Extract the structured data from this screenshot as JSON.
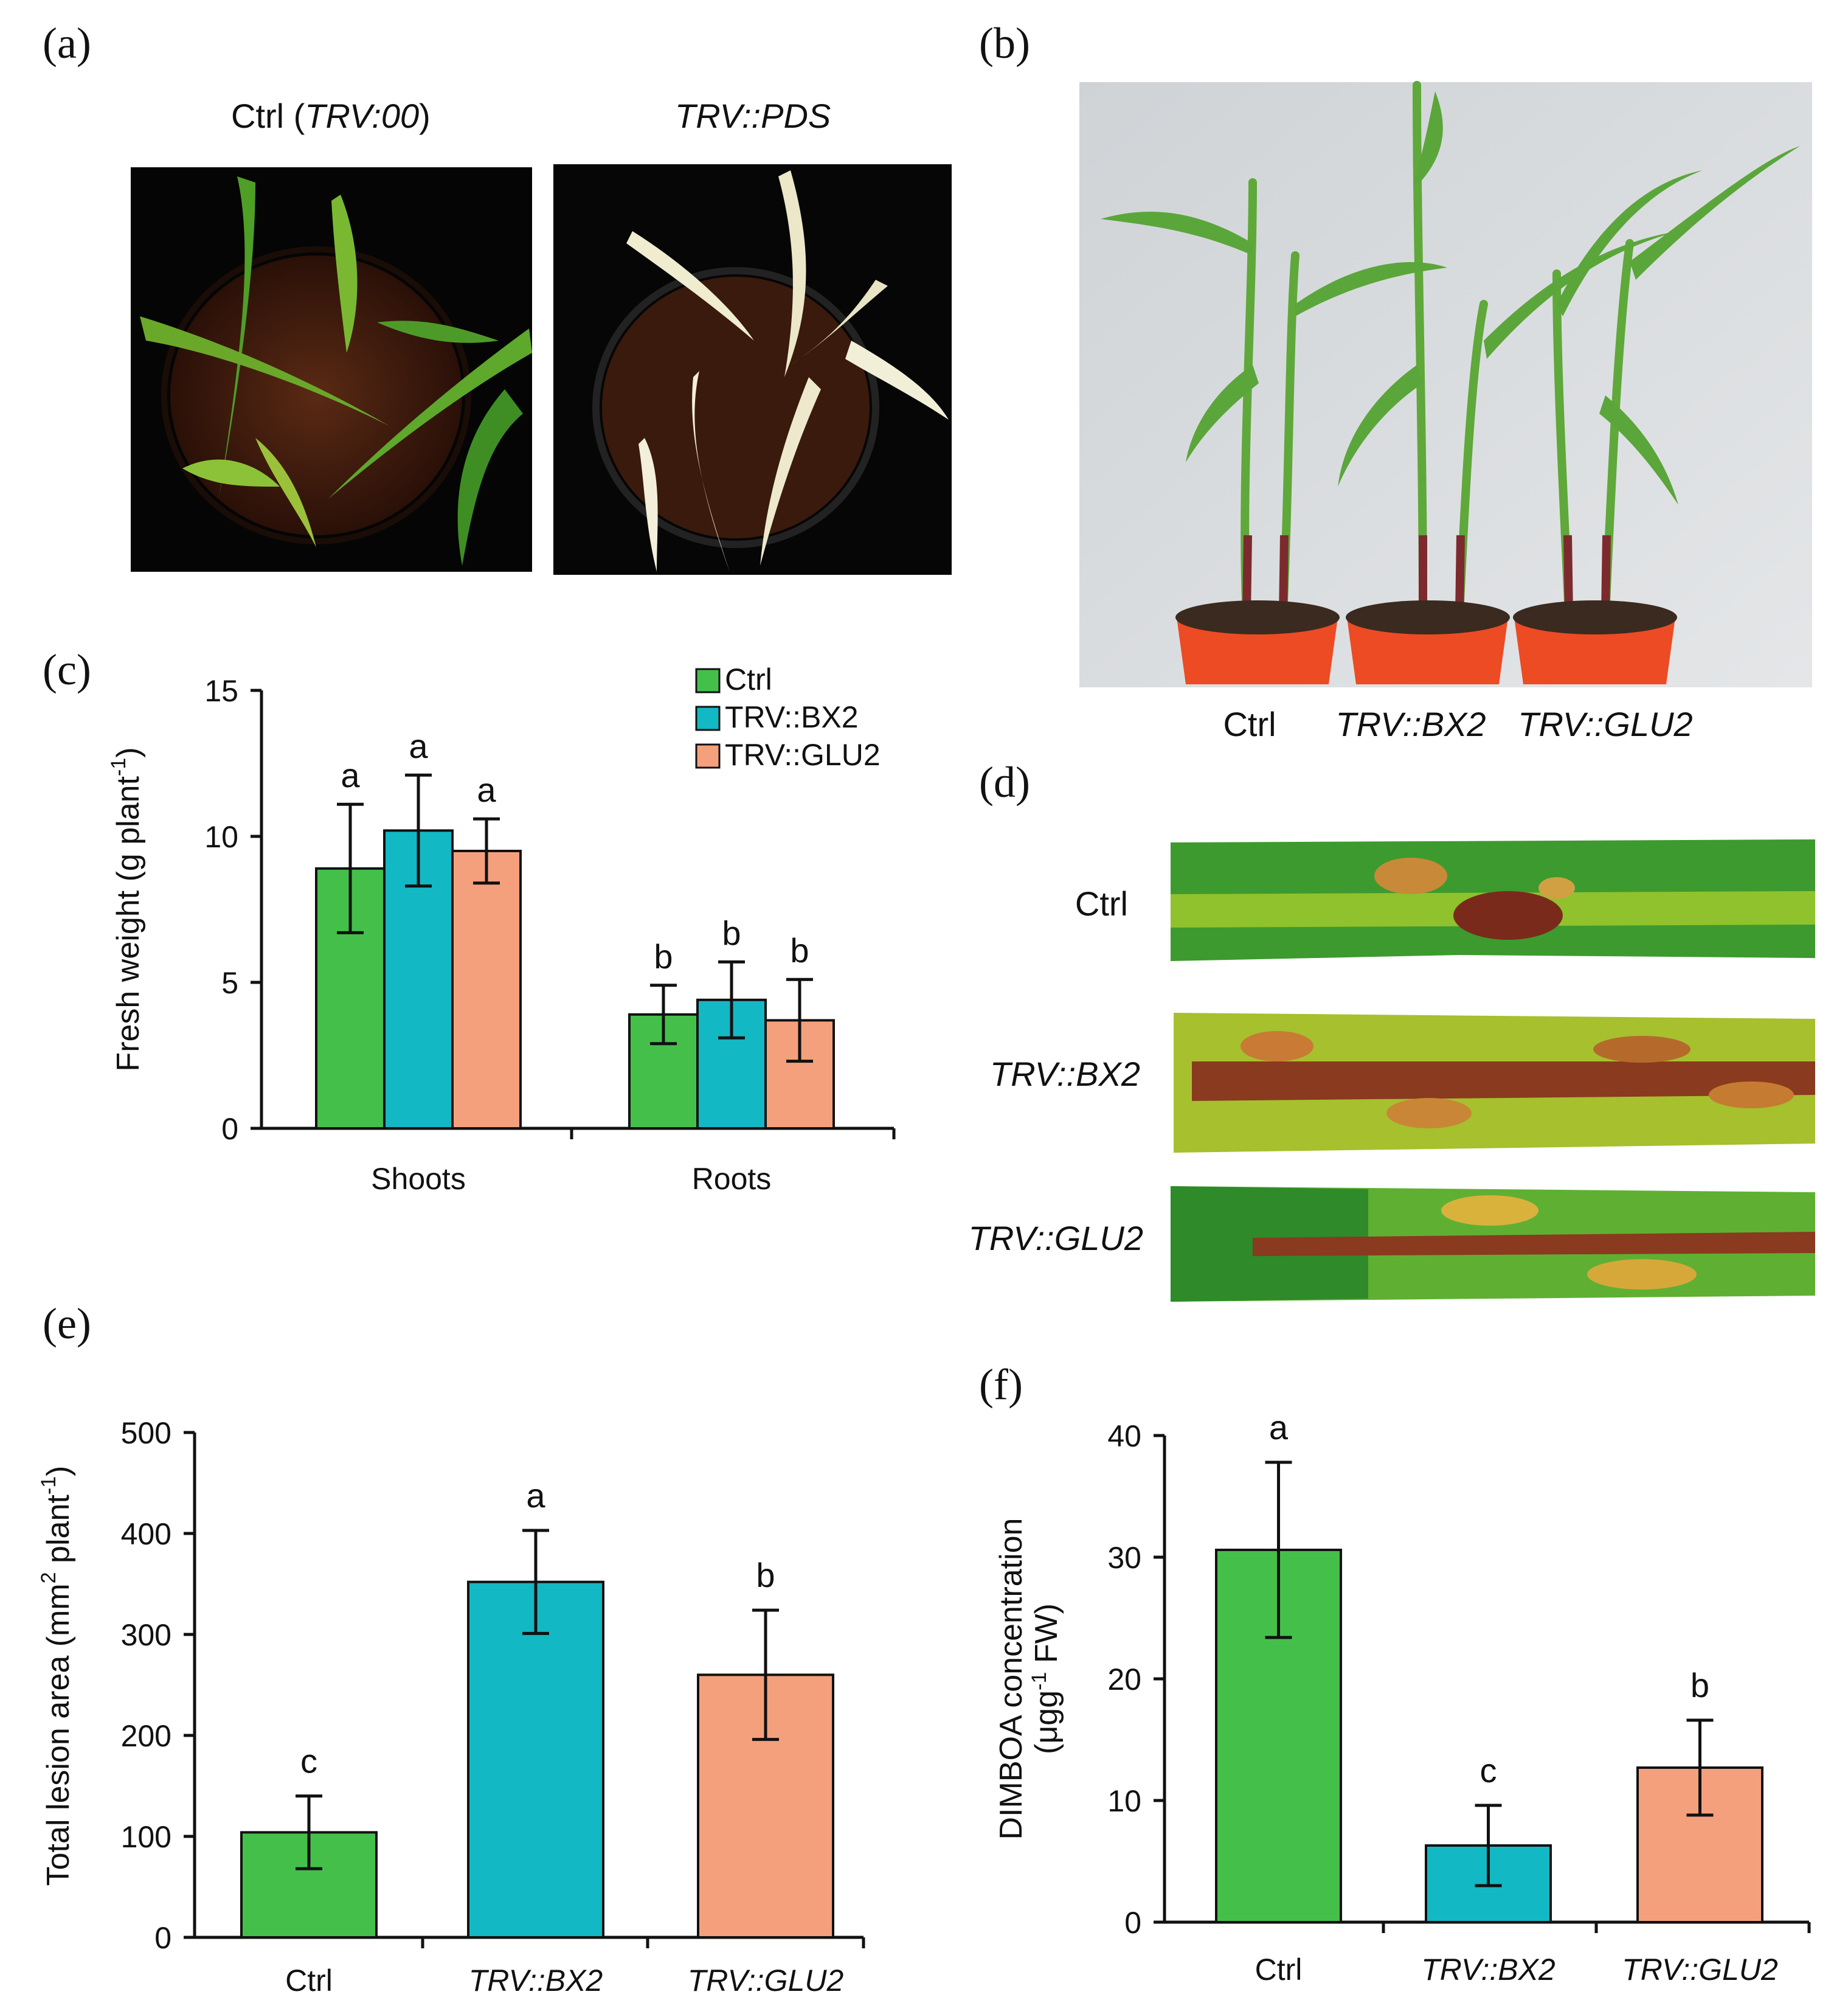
{
  "colors": {
    "ctrl": "#44c04a",
    "bx2": "#12b8c4",
    "glu2": "#f5a07c"
  },
  "panels": {
    "a": {
      "label": "(a)",
      "left_title_prefix": "Ctrl (",
      "left_title_italic": "TRV:00",
      "left_title_suffix": ")",
      "right_title": "TRV::PDS"
    },
    "b": {
      "label": "(b)",
      "captions": [
        "Ctrl",
        "TRV::BX2",
        "TRV::GLU2"
      ]
    },
    "d": {
      "label": "(d)",
      "rows": [
        "Ctrl",
        "TRV::BX2",
        "TRV::GLU2"
      ]
    }
  },
  "chart_data": [
    {
      "panel": "(c)",
      "type": "bar",
      "categories": [
        "Shoots",
        "Roots"
      ],
      "ylabel_main": "Fresh weight (g plant",
      "ylabel_sup": "-1",
      "ylabel_end": ")",
      "ylim": [
        0,
        15
      ],
      "yticks": [
        "0",
        "5",
        "10",
        "15"
      ],
      "legend": [
        "Ctrl",
        "TRV::BX2",
        "TRV::GLU2"
      ],
      "legend_position": "top-right",
      "series": [
        {
          "name": "Ctrl",
          "values": [
            8.9,
            3.9
          ],
          "errors": [
            2.2,
            1.0
          ],
          "letters": [
            "a",
            "b"
          ]
        },
        {
          "name": "TRV::BX2",
          "values": [
            10.2,
            4.4
          ],
          "errors": [
            1.9,
            1.3
          ],
          "letters": [
            "a",
            "b"
          ]
        },
        {
          "name": "TRV::GLU2",
          "values": [
            9.5,
            3.7
          ],
          "errors": [
            1.1,
            1.4
          ],
          "letters": [
            "a",
            "b"
          ]
        }
      ]
    },
    {
      "panel": "(e)",
      "type": "bar",
      "categories": [
        "Ctrl",
        "TRV::BX2",
        "TRV::GLU2"
      ],
      "ylabel_main": "Total lesion area (mm",
      "ylabel_sup1": "2",
      "ylabel_mid": " plant",
      "ylabel_sup2": "-1",
      "ylabel_end": ")",
      "ylim": [
        0,
        500
      ],
      "yticks": [
        "0",
        "100",
        "200",
        "300",
        "400",
        "500"
      ],
      "values": [
        104,
        352,
        260
      ],
      "errors": [
        36,
        51,
        64
      ],
      "letters": [
        "c",
        "a",
        "b"
      ]
    },
    {
      "panel": "(f)",
      "type": "bar",
      "categories": [
        "Ctrl",
        "TRV::BX2",
        "TRV::GLU2"
      ],
      "ylabel_line1": "DIMBOA concentration",
      "ylabel_line2_a": "(μgg",
      "ylabel_line2_sup": "-1",
      "ylabel_line2_b": " FW)",
      "ylim": [
        0,
        40
      ],
      "yticks": [
        "0",
        "10",
        "20",
        "30",
        "40"
      ],
      "values": [
        30.6,
        6.3,
        12.7
      ],
      "errors": [
        7.2,
        3.3,
        3.9
      ],
      "letters": [
        "a",
        "c",
        "b"
      ]
    }
  ]
}
